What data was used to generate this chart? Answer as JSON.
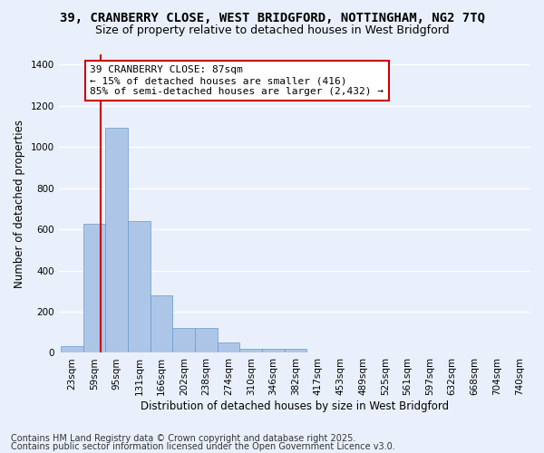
{
  "title1": "39, CRANBERRY CLOSE, WEST BRIDGFORD, NOTTINGHAM, NG2 7TQ",
  "title2": "Size of property relative to detached houses in West Bridgford",
  "xlabel": "Distribution of detached houses by size in West Bridgford",
  "ylabel": "Number of detached properties",
  "bin_labels": [
    "23sqm",
    "59sqm",
    "95sqm",
    "131sqm",
    "166sqm",
    "202sqm",
    "238sqm",
    "274sqm",
    "310sqm",
    "346sqm",
    "382sqm",
    "417sqm",
    "453sqm",
    "489sqm",
    "525sqm",
    "561sqm",
    "597sqm",
    "632sqm",
    "668sqm",
    "704sqm",
    "740sqm"
  ],
  "bar_heights": [
    35,
    625,
    1095,
    640,
    280,
    120,
    120,
    50,
    20,
    20,
    20,
    0,
    0,
    0,
    0,
    0,
    0,
    0,
    0,
    0,
    0
  ],
  "bar_color": "#adc6e8",
  "bar_edge_color": "#6699cc",
  "vline_color": "#cc0000",
  "vline_x": 1.78,
  "annotation_text": "39 CRANBERRY CLOSE: 87sqm\n← 15% of detached houses are smaller (416)\n85% of semi-detached houses are larger (2,432) →",
  "annotation_box_color": "#ffffff",
  "annotation_border_color": "#cc0000",
  "ylim": [
    0,
    1450
  ],
  "yticks": [
    0,
    200,
    400,
    600,
    800,
    1000,
    1200,
    1400
  ],
  "bg_color": "#eaf0fb",
  "grid_color": "#ffffff",
  "footer1": "Contains HM Land Registry data © Crown copyright and database right 2025.",
  "footer2": "Contains public sector information licensed under the Open Government Licence v3.0.",
  "title_fontsize": 10,
  "subtitle_fontsize": 9,
  "axis_label_fontsize": 8.5,
  "tick_fontsize": 7.5,
  "annotation_fontsize": 8,
  "footer_fontsize": 7
}
